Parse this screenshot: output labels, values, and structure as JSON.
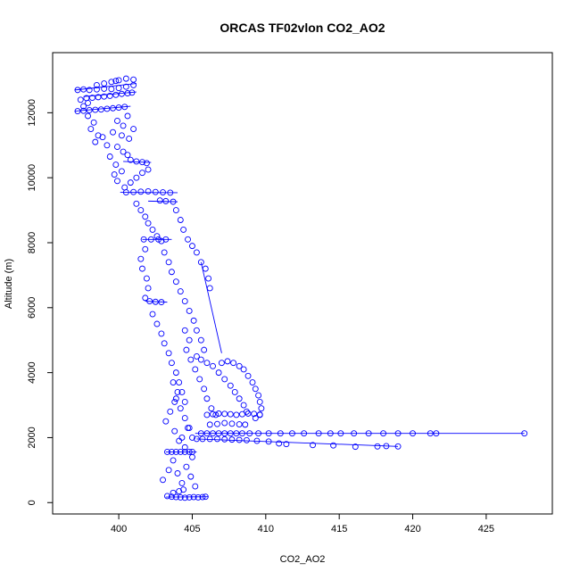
{
  "chart_data": {
    "type": "scatter",
    "title": "ORCAS TF02vlon CO2_AO2",
    "xlabel": "CO2_AO2",
    "ylabel": "Altitude (m)",
    "xlim": [
      395.5,
      429.5
    ],
    "ylim": [
      -350,
      13850
    ],
    "xticks": [
      400,
      405,
      410,
      415,
      420,
      425
    ],
    "yticks": [
      0,
      2000,
      4000,
      6000,
      8000,
      10000,
      12000
    ],
    "point_color": "#0000ff",
    "marker": "open-circle",
    "grid": false,
    "legend": "none",
    "series": [
      {
        "values": [
          [
            397.2,
            12700
          ],
          [
            397.6,
            12720
          ],
          [
            398.0,
            12700
          ],
          [
            398.5,
            12720
          ],
          [
            399.0,
            12740
          ],
          [
            399.5,
            12730
          ],
          [
            400.0,
            12760
          ],
          [
            400.5,
            12800
          ],
          [
            401.0,
            12850
          ],
          [
            399.0,
            12900
          ],
          [
            399.5,
            12950
          ],
          [
            400.0,
            13000
          ],
          [
            400.5,
            13050
          ],
          [
            401.0,
            13020
          ],
          [
            398.5,
            12850
          ],
          [
            399.8,
            12980
          ],
          [
            397.8,
            12450
          ],
          [
            398.2,
            12460
          ],
          [
            398.6,
            12480
          ],
          [
            399.0,
            12500
          ],
          [
            399.4,
            12520
          ],
          [
            399.8,
            12550
          ],
          [
            400.2,
            12580
          ],
          [
            400.6,
            12600
          ],
          [
            400.9,
            12620
          ],
          [
            397.4,
            12400
          ],
          [
            397.9,
            12300
          ],
          [
            397.6,
            12200
          ],
          [
            397.2,
            12050
          ],
          [
            397.6,
            12060
          ],
          [
            398.0,
            12080
          ],
          [
            398.4,
            12090
          ],
          [
            398.8,
            12100
          ],
          [
            399.2,
            12120
          ],
          [
            399.6,
            12140
          ],
          [
            400.0,
            12160
          ],
          [
            400.4,
            12180
          ],
          [
            397.9,
            11900
          ],
          [
            398.3,
            11700
          ],
          [
            398.1,
            11500
          ],
          [
            398.6,
            11300
          ],
          [
            398.4,
            11100
          ],
          [
            398.9,
            11250
          ],
          [
            399.2,
            11000
          ],
          [
            399.6,
            11400
          ],
          [
            399.9,
            11750
          ],
          [
            400.3,
            11600
          ],
          [
            400.6,
            11900
          ],
          [
            400.2,
            11300
          ],
          [
            400.7,
            11200
          ],
          [
            401.0,
            11500
          ],
          [
            399.9,
            10950
          ],
          [
            400.3,
            10800
          ],
          [
            400.6,
            10700
          ],
          [
            400.8,
            10550
          ],
          [
            401.2,
            10500
          ],
          [
            401.6,
            10480
          ],
          [
            401.9,
            10450
          ],
          [
            399.4,
            10650
          ],
          [
            399.8,
            10400
          ],
          [
            400.2,
            10200
          ],
          [
            399.7,
            10100
          ],
          [
            399.9,
            9900
          ],
          [
            400.4,
            9700
          ],
          [
            400.8,
            9850
          ],
          [
            401.2,
            10000
          ],
          [
            401.6,
            10150
          ],
          [
            402.0,
            10250
          ],
          [
            400.5,
            9550
          ],
          [
            401.0,
            9560
          ],
          [
            401.5,
            9570
          ],
          [
            402.0,
            9580
          ],
          [
            402.5,
            9560
          ],
          [
            403.0,
            9550
          ],
          [
            403.5,
            9540
          ],
          [
            401.2,
            9200
          ],
          [
            401.5,
            9000
          ],
          [
            401.8,
            8800
          ],
          [
            402.0,
            8600
          ],
          [
            402.3,
            8400
          ],
          [
            402.6,
            8200
          ],
          [
            402.9,
            8050
          ],
          [
            402.8,
            9300
          ],
          [
            403.2,
            9280
          ],
          [
            403.7,
            9260
          ],
          [
            403.9,
            9000
          ],
          [
            404.2,
            8700
          ],
          [
            404.4,
            8400
          ],
          [
            404.7,
            8100
          ],
          [
            405.0,
            7900
          ],
          [
            405.3,
            7700
          ],
          [
            405.6,
            7400
          ],
          [
            405.9,
            7200
          ],
          [
            406.1,
            6900
          ],
          [
            406.2,
            6600
          ],
          [
            401.7,
            8100
          ],
          [
            402.2,
            8100
          ],
          [
            402.7,
            8100
          ],
          [
            403.2,
            8100
          ],
          [
            401.8,
            7800
          ],
          [
            401.5,
            7500
          ],
          [
            401.6,
            7200
          ],
          [
            401.9,
            6900
          ],
          [
            402.0,
            6600
          ],
          [
            401.8,
            6300
          ],
          [
            402.1,
            6200
          ],
          [
            402.5,
            6180
          ],
          [
            402.9,
            6170
          ],
          [
            403.1,
            7700
          ],
          [
            403.4,
            7400
          ],
          [
            403.6,
            7100
          ],
          [
            403.9,
            6800
          ],
          [
            404.2,
            6500
          ],
          [
            404.5,
            6200
          ],
          [
            404.8,
            5900
          ],
          [
            405.1,
            5600
          ],
          [
            405.3,
            5300
          ],
          [
            405.6,
            5000
          ],
          [
            405.8,
            4700
          ],
          [
            402.3,
            5800
          ],
          [
            402.6,
            5500
          ],
          [
            402.9,
            5200
          ],
          [
            403.1,
            4900
          ],
          [
            403.4,
            4600
          ],
          [
            403.6,
            4300
          ],
          [
            403.9,
            4000
          ],
          [
            404.1,
            3700
          ],
          [
            404.3,
            3400
          ],
          [
            404.5,
            3100
          ],
          [
            404.5,
            5300
          ],
          [
            404.8,
            5000
          ],
          [
            404.6,
            4700
          ],
          [
            404.9,
            4400
          ],
          [
            405.2,
            4100
          ],
          [
            405.5,
            3800
          ],
          [
            405.8,
            3500
          ],
          [
            406.0,
            3200
          ],
          [
            406.3,
            2900
          ],
          [
            406.6,
            2700
          ],
          [
            407.0,
            4300
          ],
          [
            407.4,
            4350
          ],
          [
            407.8,
            4300
          ],
          [
            408.2,
            4200
          ],
          [
            408.5,
            4100
          ],
          [
            408.8,
            3900
          ],
          [
            409.1,
            3700
          ],
          [
            409.3,
            3500
          ],
          [
            409.5,
            3300
          ],
          [
            409.6,
            3100
          ],
          [
            409.7,
            2900
          ],
          [
            409.6,
            2700
          ],
          [
            409.3,
            2600
          ],
          [
            405.3,
            4500
          ],
          [
            405.6,
            4400
          ],
          [
            406.0,
            4300
          ],
          [
            406.4,
            4200
          ],
          [
            406.8,
            4000
          ],
          [
            407.2,
            3800
          ],
          [
            407.6,
            3600
          ],
          [
            407.9,
            3400
          ],
          [
            408.2,
            3200
          ],
          [
            408.5,
            3000
          ],
          [
            408.7,
            2800
          ],
          [
            403.2,
            2500
          ],
          [
            403.5,
            2800
          ],
          [
            403.8,
            3100
          ],
          [
            404.0,
            3400
          ],
          [
            403.7,
            3700
          ],
          [
            403.9,
            3200
          ],
          [
            404.2,
            2900
          ],
          [
            404.5,
            2600
          ],
          [
            404.8,
            2300
          ],
          [
            405.0,
            2000
          ],
          [
            406.0,
            2700
          ],
          [
            406.4,
            2720
          ],
          [
            406.8,
            2740
          ],
          [
            407.2,
            2730
          ],
          [
            407.6,
            2720
          ],
          [
            408.0,
            2700
          ],
          [
            408.4,
            2720
          ],
          [
            408.8,
            2740
          ],
          [
            409.2,
            2730
          ],
          [
            409.6,
            2710
          ],
          [
            406.2,
            2400
          ],
          [
            406.7,
            2420
          ],
          [
            407.2,
            2450
          ],
          [
            407.7,
            2430
          ],
          [
            408.2,
            2410
          ],
          [
            408.6,
            2400
          ],
          [
            405.6,
            2130
          ],
          [
            406.0,
            2130
          ],
          [
            406.4,
            2130
          ],
          [
            406.8,
            2130
          ],
          [
            407.2,
            2130
          ],
          [
            407.6,
            2130
          ],
          [
            408.0,
            2130
          ],
          [
            408.4,
            2130
          ],
          [
            408.9,
            2130
          ],
          [
            409.5,
            2130
          ],
          [
            410.2,
            2130
          ],
          [
            411.0,
            2130
          ],
          [
            411.8,
            2130
          ],
          [
            412.6,
            2130
          ],
          [
            413.6,
            2130
          ],
          [
            414.4,
            2130
          ],
          [
            415.1,
            2130
          ],
          [
            416.0,
            2130
          ],
          [
            417.0,
            2130
          ],
          [
            418.0,
            2130
          ],
          [
            419.0,
            2130
          ],
          [
            420.0,
            2130
          ],
          [
            421.2,
            2130
          ],
          [
            421.6,
            2130
          ],
          [
            427.6,
            2130
          ],
          [
            405.3,
            1960
          ],
          [
            405.7,
            1960
          ],
          [
            406.2,
            1960
          ],
          [
            406.7,
            1960
          ],
          [
            407.2,
            1950
          ],
          [
            407.7,
            1940
          ],
          [
            408.2,
            1930
          ],
          [
            408.7,
            1920
          ],
          [
            409.4,
            1900
          ],
          [
            410.2,
            1880
          ],
          [
            410.9,
            1820
          ],
          [
            411.4,
            1800
          ],
          [
            413.2,
            1770
          ],
          [
            414.6,
            1760
          ],
          [
            416.1,
            1720
          ],
          [
            417.6,
            1730
          ],
          [
            418.2,
            1740
          ],
          [
            419.0,
            1730
          ],
          [
            403.3,
            1560
          ],
          [
            403.6,
            1560
          ],
          [
            403.9,
            1560
          ],
          [
            404.2,
            1560
          ],
          [
            404.5,
            1560
          ],
          [
            404.8,
            1560
          ],
          [
            405.0,
            1560
          ],
          [
            403.0,
            700
          ],
          [
            403.4,
            1000
          ],
          [
            403.7,
            1300
          ],
          [
            404.0,
            900
          ],
          [
            404.3,
            600
          ],
          [
            404.6,
            1100
          ],
          [
            404.9,
            800
          ],
          [
            405.2,
            500
          ],
          [
            405.0,
            1400
          ],
          [
            404.5,
            1700
          ],
          [
            404.1,
            1900
          ],
          [
            403.8,
            2200
          ],
          [
            404.3,
            2000
          ],
          [
            404.7,
            2300
          ],
          [
            403.3,
            200
          ],
          [
            403.6,
            180
          ],
          [
            403.9,
            170
          ],
          [
            404.2,
            160
          ],
          [
            404.5,
            150
          ],
          [
            404.8,
            160
          ],
          [
            405.1,
            170
          ],
          [
            405.4,
            160
          ],
          [
            405.7,
            170
          ],
          [
            405.9,
            180
          ],
          [
            403.7,
            300
          ],
          [
            404.1,
            350
          ],
          [
            404.4,
            400
          ]
        ]
      },
      {
        "values": [
          [
            397.0,
            12700
          ],
          [
            401.2,
            12900
          ],
          [
            397.6,
            12500
          ],
          [
            401.2,
            12640
          ],
          [
            397.0,
            12050
          ],
          [
            400.8,
            12200
          ],
          [
            400.3,
            10500
          ],
          [
            402.2,
            10470
          ],
          [
            400.1,
            9550
          ],
          [
            404.0,
            9540
          ],
          [
            402.0,
            9280
          ],
          [
            404.0,
            9260
          ],
          [
            401.6,
            8100
          ],
          [
            403.6,
            8100
          ],
          [
            401.8,
            6200
          ],
          [
            403.3,
            6170
          ],
          [
            403.2,
            1560
          ],
          [
            405.3,
            1560
          ],
          [
            403.2,
            170
          ],
          [
            406.1,
            180
          ],
          [
            405.6,
            7400
          ],
          [
            407.0,
            4600
          ],
          [
            405.2,
            2130
          ],
          [
            427.6,
            2130
          ],
          [
            405.3,
            1960
          ],
          [
            419.0,
            1730
          ]
        ]
      }
    ]
  }
}
